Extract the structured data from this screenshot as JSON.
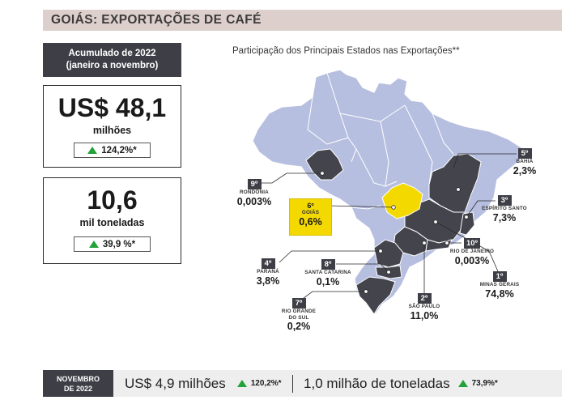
{
  "title": "GOIÁS: EXPORTAÇÕES DE CAFÉ",
  "accumulated": {
    "label_line1": "Acumulado de 2022",
    "label_line2": "(janeiro a novembro)",
    "value_box": {
      "value": "US$ 48,1",
      "unit": "milhões",
      "change": "124,2%*"
    },
    "volume_box": {
      "value": "10,6",
      "unit": "mil toneladas",
      "change": "39,9 %*"
    }
  },
  "map": {
    "title": "Participação dos Principais Estados nas Exportações**",
    "states": [
      {
        "rank": "1º",
        "name": "MINAS GERAIS",
        "share": "74,8%"
      },
      {
        "rank": "2º",
        "name": "SÃO PAULO",
        "share": "11,0%"
      },
      {
        "rank": "3º",
        "name": "ESPÍRITO SANTO",
        "share": "7,3%"
      },
      {
        "rank": "4º",
        "name": "PARANÁ",
        "share": "3,8%"
      },
      {
        "rank": "5º",
        "name": "BAHIA",
        "share": "2,3%"
      },
      {
        "rank": "6º",
        "name": "GOIÁS",
        "share": "0,6%"
      },
      {
        "rank": "7º",
        "name": "RIO GRANDE DO SUL",
        "name_line1": "RIO GRANDE",
        "name_line2": "DO SUL",
        "share": "0,2%"
      },
      {
        "rank": "8º",
        "name": "SANTA CATARINA",
        "share": "0,1%"
      },
      {
        "rank": "9º",
        "name": "RONDÔNIA",
        "share": "0,003%"
      },
      {
        "rank": "10º",
        "name": "RIO DE JANEIRO",
        "share": "0,003%"
      }
    ],
    "colors": {
      "brazil": "#b7bfe0",
      "highlighted": "#44444d",
      "goias": "#f4d900"
    }
  },
  "november": {
    "label_line1": "NOVEMBRO",
    "label_line2": "DE 2022",
    "value_text": "US$ 4,9 milhões",
    "value_change": "120,2%*",
    "volume_text": "1,0 milhão de toneladas",
    "volume_change": "73,9%*"
  },
  "colors": {
    "accent_dark": "#3e3e47",
    "title_bg": "#ddcfcb",
    "up_arrow": "#23a23a"
  }
}
